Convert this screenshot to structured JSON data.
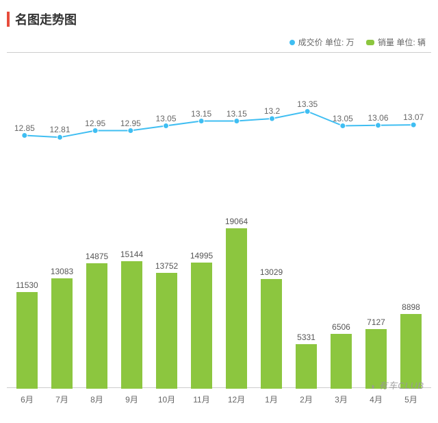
{
  "title": "名图走势图",
  "legend": {
    "series1": {
      "label": "成交价 单位: 万",
      "color": "#3fbef2"
    },
    "series2": {
      "label": "销量 单位: 辆",
      "color": "#8cc63f"
    }
  },
  "chart": {
    "categories": [
      "6月",
      "7月",
      "8月",
      "9月",
      "10月",
      "11月",
      "12月",
      "1月",
      "2月",
      "3月",
      "4月",
      "5月"
    ],
    "line": {
      "values": [
        12.85,
        12.81,
        12.95,
        12.95,
        13.05,
        13.15,
        13.15,
        13.2,
        13.35,
        13.05,
        13.06,
        13.07
      ],
      "ymin": 12.0,
      "ymax": 14.0,
      "color": "#3fbef2",
      "marker_color": "#3fbef2",
      "stroke_width": 2,
      "marker_r": 4
    },
    "bars": {
      "values": [
        11530,
        13083,
        14875,
        15144,
        13752,
        14995,
        19064,
        13029,
        5331,
        6506,
        7127,
        8898
      ],
      "ymax": 22000,
      "color": "#8cc63f"
    },
    "title_accent_color": "#e74c3c",
    "border_color": "#cccccc",
    "text_color": "#666666",
    "fontsize_label": 12,
    "fontsize_title": 18
  },
  "watermark": {
    "text": "有车CLUB",
    "icon": "◑"
  }
}
